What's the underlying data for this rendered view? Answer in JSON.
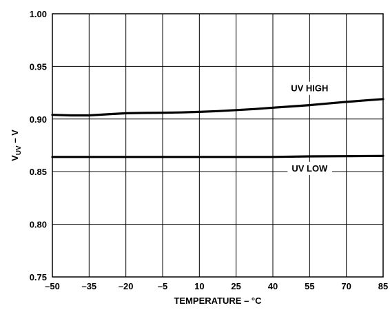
{
  "chart_data": {
    "type": "line",
    "xlabel": "TEMPERATURE – °C",
    "ylabel": {
      "main": "V",
      "sub": "UV",
      "suffix": " – V"
    },
    "xlim": [
      -50,
      85
    ],
    "ylim": [
      0.75,
      1.0
    ],
    "x_ticks": [
      -50,
      -35,
      -20,
      -5,
      10,
      25,
      40,
      55,
      70,
      85
    ],
    "x_tick_labels": [
      "–50",
      "–35",
      "–20",
      "–5",
      "10",
      "25",
      "40",
      "55",
      "70",
      "85"
    ],
    "y_ticks": [
      0.75,
      0.8,
      0.85,
      0.9,
      0.95,
      1.0
    ],
    "y_tick_labels": [
      "0.75",
      "0.80",
      "0.85",
      "0.90",
      "0.95",
      "1.00"
    ],
    "grid": true,
    "series": [
      {
        "name": "UV HIGH",
        "x": [
          -50,
          -42.5,
          -35,
          -27.5,
          -20,
          -12.5,
          -5,
          2.5,
          10,
          17.5,
          25,
          32.5,
          40,
          47.5,
          55,
          62.5,
          70,
          77.5,
          85
        ],
        "y": [
          0.904,
          0.9035,
          0.9035,
          0.9045,
          0.9055,
          0.9058,
          0.906,
          0.9063,
          0.9068,
          0.9075,
          0.9085,
          0.9095,
          0.9108,
          0.912,
          0.9132,
          0.9148,
          0.9163,
          0.9177,
          0.919
        ]
      },
      {
        "name": "UV LOW",
        "x": [
          -50,
          -35,
          -20,
          -5,
          10,
          25,
          40,
          55,
          70,
          85
        ],
        "y": [
          0.864,
          0.864,
          0.864,
          0.864,
          0.864,
          0.864,
          0.864,
          0.8645,
          0.8647,
          0.865
        ]
      }
    ],
    "annotations": [
      {
        "text": "UV HIGH",
        "series": 0,
        "x": 55,
        "y": 0.9295
      },
      {
        "text": "UV LOW",
        "series": 1,
        "x": 55,
        "y": 0.8535
      }
    ]
  }
}
